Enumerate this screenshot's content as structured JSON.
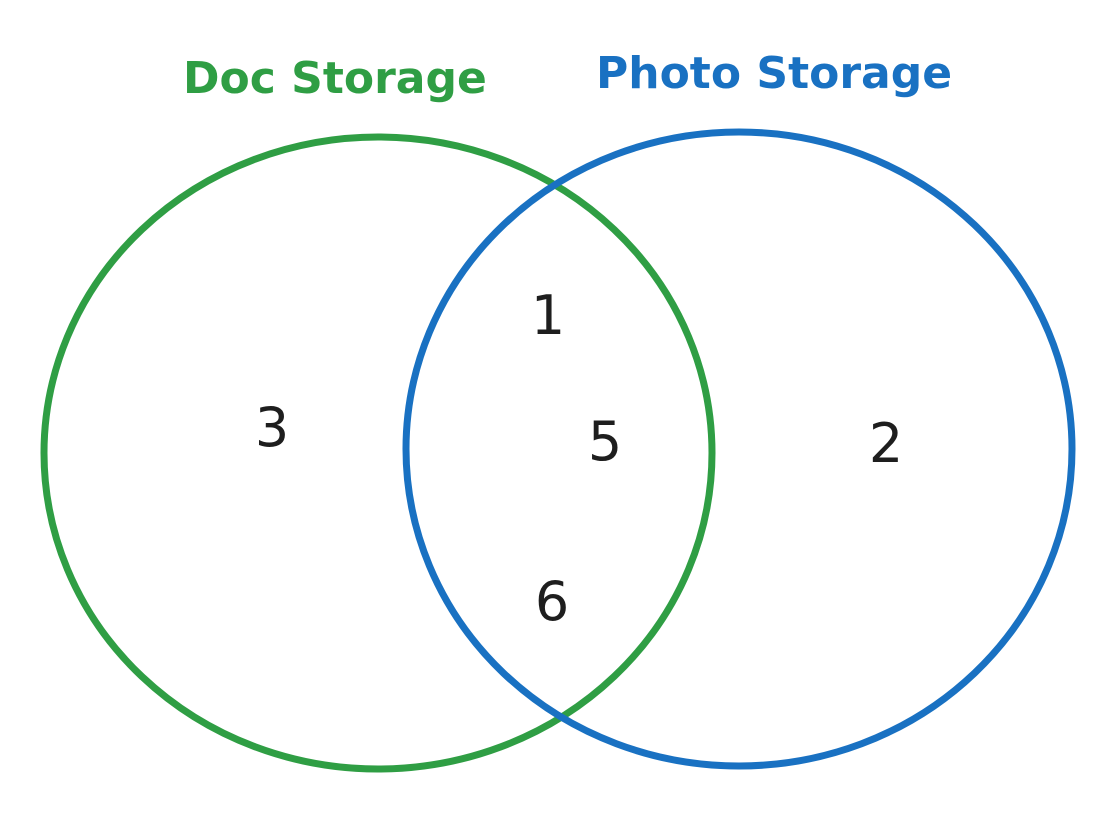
{
  "sets": {
    "left": {
      "label": "Doc Storage",
      "color": "#2f9e44"
    },
    "right": {
      "label": "Photo Storage",
      "color": "#1971c2"
    }
  },
  "regions": {
    "left_only": "3",
    "intersection_top": "1",
    "intersection_middle": "5",
    "intersection_bottom": "6",
    "right_only": "2"
  }
}
